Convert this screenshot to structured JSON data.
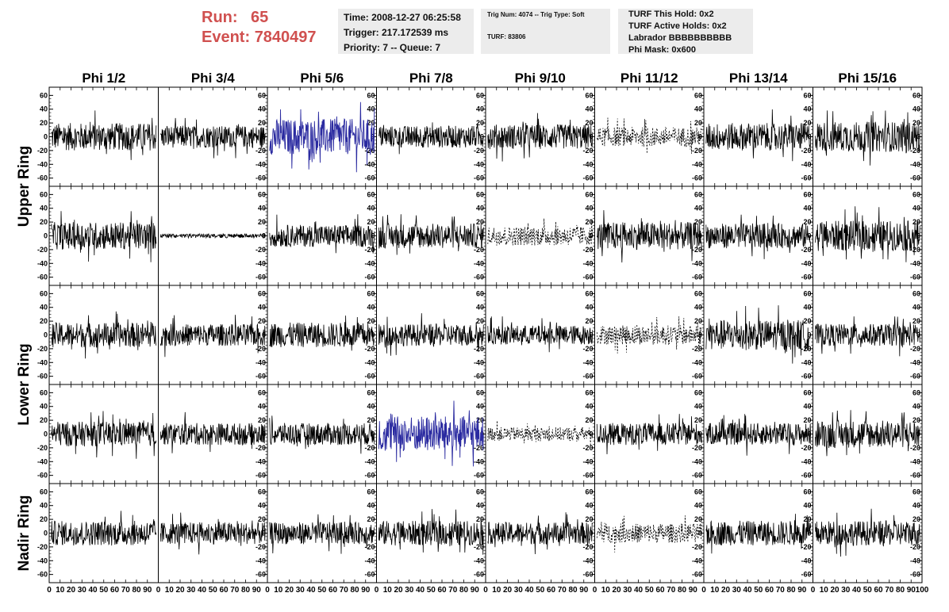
{
  "header": {
    "run_label": "Run:",
    "run_value": "65",
    "event_label": "Event:",
    "event_value": "7840497"
  },
  "info_box_1": {
    "time": "Time: 2008-12-27 06:25:58",
    "trigger": "Trigger: 217.172539 ms",
    "priority": "Priority: 7 -- Queue: 7"
  },
  "info_box_2": {
    "trig": "Trig Num: 4074 -- Trig Type: Soft",
    "turf": "TURF: 83806"
  },
  "info_box_3": {
    "hold": "TURF This Hold: 0x2",
    "active_holds": "TURF Active Holds: 0x2",
    "labrador": "Labrador BBBBBBBBBB",
    "phi_mask": "Phi Mask: 0x600"
  },
  "columns": [
    "Phi 1/2",
    "Phi 3/4",
    "Phi 5/6",
    "Phi 7/8",
    "Phi 9/10",
    "Phi 11/12",
    "Phi 13/14",
    "Phi 15/16"
  ],
  "ring_labels": [
    {
      "text": "Upper Ring",
      "rows": [
        0,
        1
      ]
    },
    {
      "text": "Lower Ring",
      "rows": [
        2,
        3
      ]
    },
    {
      "text": "Nadir Ring",
      "rows": [
        4
      ]
    }
  ],
  "chart_data": {
    "type": "line",
    "x_range": [
      0,
      100
    ],
    "y_range": [
      -65,
      65
    ],
    "y_ticks": [
      -60,
      -40,
      -20,
      0,
      20,
      40,
      60
    ],
    "x_ticks": [
      0,
      10,
      20,
      30,
      40,
      50,
      60,
      70,
      80,
      90
    ],
    "x_last_tick": "100",
    "rows": 5,
    "cols": 8,
    "colors": {
      "normal": "#000000",
      "triggered": "#2a2aa0",
      "masked": "#000000"
    },
    "panel_styles": [
      [
        "n",
        "n",
        "t",
        "n",
        "n",
        "m",
        "n",
        "n"
      ],
      [
        "n",
        "f",
        "n",
        "n",
        "m",
        "n",
        "n",
        "n"
      ],
      [
        "n",
        "n",
        "n",
        "n",
        "n",
        "m",
        "n",
        "n"
      ],
      [
        "n",
        "n",
        "n",
        "t",
        "m",
        "n",
        "n",
        "n"
      ],
      [
        "n",
        "n",
        "n",
        "n",
        "n",
        "m",
        "n",
        "n"
      ]
    ],
    "panel_amplitudes": [
      [
        20,
        16,
        26,
        16,
        18,
        14,
        20,
        22
      ],
      [
        20,
        3,
        16,
        18,
        14,
        20,
        18,
        22
      ],
      [
        18,
        16,
        18,
        16,
        14,
        14,
        22,
        16
      ],
      [
        18,
        16,
        16,
        26,
        10,
        16,
        16,
        20
      ],
      [
        18,
        16,
        16,
        18,
        16,
        14,
        18,
        18
      ]
    ]
  }
}
